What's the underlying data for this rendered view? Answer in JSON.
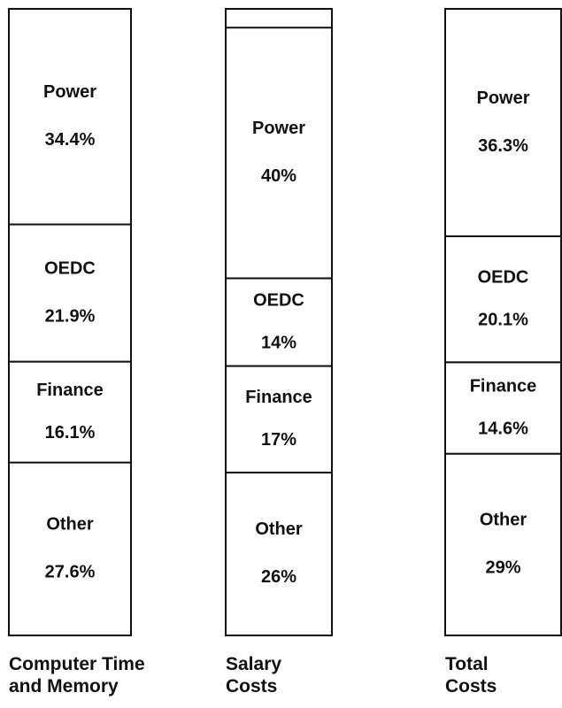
{
  "chart_data": {
    "type": "bar",
    "stacked": true,
    "categories": [
      "Computer Time and Memory",
      "Salary Costs",
      "Total Costs"
    ],
    "series": [
      {
        "name": "Other",
        "color": "#ffffff",
        "values": [
          27.6,
          26,
          29
        ],
        "value_labels": [
          "27.6%",
          "26%",
          "29%"
        ]
      },
      {
        "name": "Finance",
        "color": "#ffffff",
        "values": [
          16.1,
          17,
          14.6
        ],
        "value_labels": [
          "16.1%",
          "17%",
          "14.6%"
        ]
      },
      {
        "name": "OEDC",
        "color": "#ffffff",
        "values": [
          21.9,
          14,
          20.1
        ],
        "value_labels": [
          "21.9%",
          "14%",
          "20.1%"
        ]
      },
      {
        "name": "Power",
        "color": "#ffffff",
        "values": [
          34.4,
          40,
          36.3
        ],
        "value_labels": [
          "34.4%",
          "40%",
          "36.3%"
        ]
      }
    ],
    "ylim": [
      0,
      100
    ]
  }
}
